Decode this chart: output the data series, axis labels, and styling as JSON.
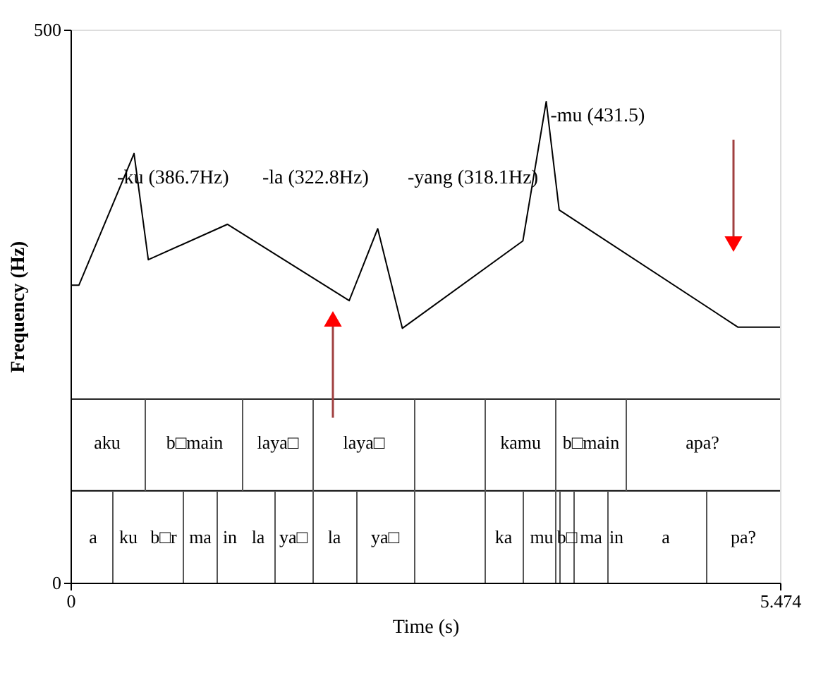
{
  "chart_data": {
    "type": "line",
    "xlabel": "Time (s)",
    "ylabel": "Frequency (Hz)",
    "x": [
      0,
      0.065,
      0.49,
      0.6,
      1.21,
      2.15,
      2.37,
      2.56,
      3.49,
      3.67,
      3.77,
      5.15,
      5.474
    ],
    "series": [
      {
        "color": "#000000",
        "values": [
          269,
          269,
          388,
          292,
          324,
          255,
          320,
          230,
          309,
          435,
          337,
          231,
          231
        ]
      }
    ],
    "xlim": [
      0,
      5.474
    ],
    "xticks": [
      0,
      5.474
    ],
    "ylim": [
      0,
      500
    ],
    "yticks": [
      0,
      500
    ],
    "marker": "none",
    "line_style": "solid",
    "ref_lines": [
      {
        "axis": "y",
        "value": 166,
        "color": "#000000"
      },
      {
        "axis": "y",
        "value": 83,
        "color": "#000000"
      }
    ],
    "annotations": [
      {
        "text": "-ku (386.7Hz)",
        "x": 0.49,
        "y": 388
      },
      "-la (322.8Hz)",
      "-yang (318.1Hz)",
      {
        "text": "-mu (431.5)",
        "x": 3.67,
        "y": 435
      },
      "aku",
      "b□main",
      "laya□",
      "laya□",
      "kamu",
      "b□main",
      "apa?",
      "a",
      "ku",
      "b□r",
      "ma",
      "in",
      "la",
      "ya□",
      "la",
      "ya□",
      "ka",
      "mu",
      "b□",
      "ma",
      "in",
      "a",
      "pa?"
    ]
  }
}
